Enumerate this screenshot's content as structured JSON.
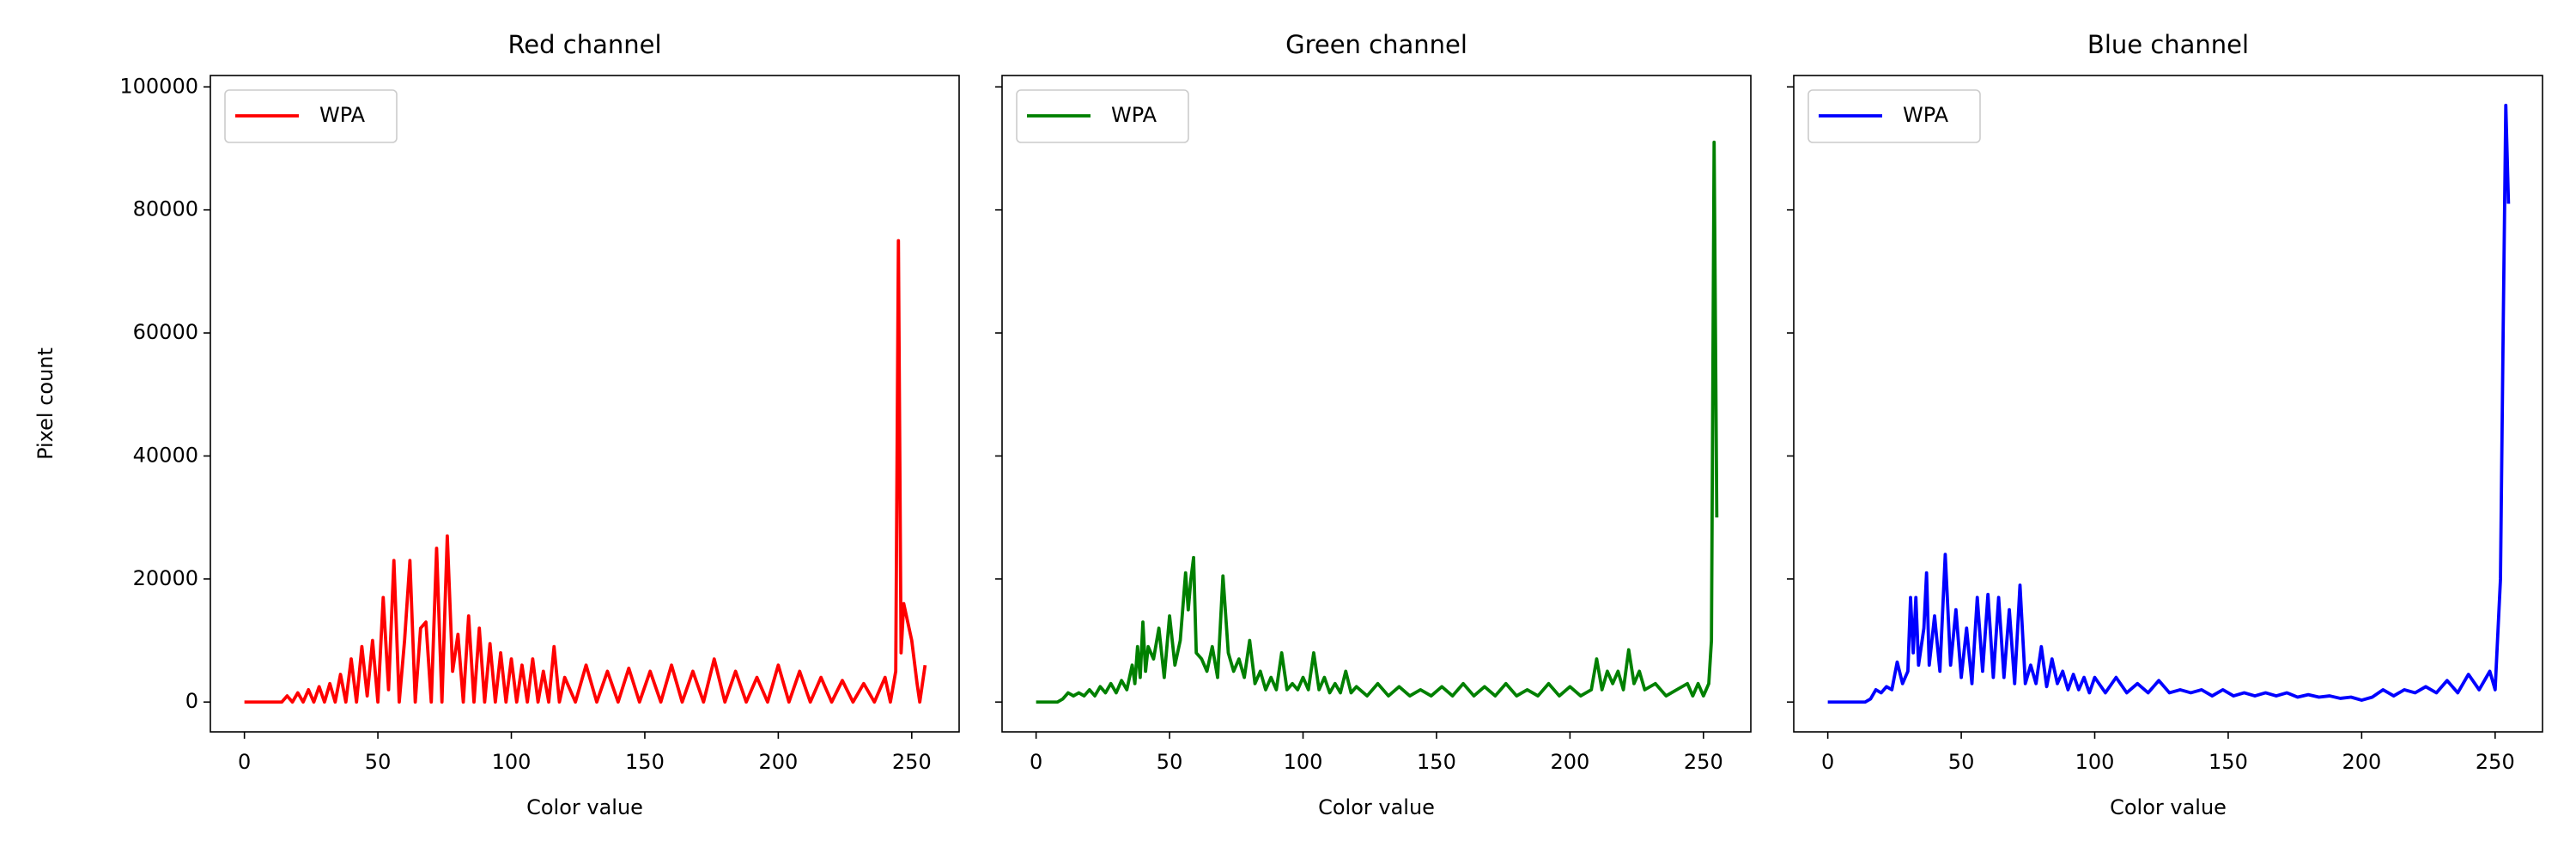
{
  "chart_data": [
    {
      "type": "line",
      "title": "Red channel",
      "xlabel": "Color value",
      "ylabel": "Pixel count",
      "legend": "upper left",
      "x": [
        0,
        10,
        14,
        16,
        18,
        20,
        22,
        24,
        26,
        28,
        30,
        32,
        34,
        36,
        38,
        40,
        42,
        44,
        46,
        48,
        50,
        52,
        54,
        56,
        58,
        60,
        62,
        64,
        66,
        68,
        70,
        72,
        74,
        76,
        78,
        80,
        82,
        84,
        86,
        88,
        90,
        92,
        94,
        96,
        98,
        100,
        102,
        104,
        106,
        108,
        110,
        112,
        114,
        116,
        118,
        120,
        124,
        128,
        132,
        136,
        140,
        144,
        148,
        152,
        156,
        160,
        164,
        168,
        172,
        176,
        180,
        184,
        188,
        192,
        196,
        200,
        204,
        208,
        212,
        216,
        220,
        224,
        228,
        232,
        236,
        240,
        242,
        244,
        245,
        246,
        247,
        248,
        250,
        252,
        253,
        255
      ],
      "series": [
        {
          "name": "WPA",
          "color": "#ff0000",
          "values": [
            0,
            0,
            0,
            1000,
            0,
            1500,
            0,
            2000,
            0,
            2500,
            0,
            3000,
            0,
            4500,
            0,
            7000,
            0,
            9000,
            1000,
            10000,
            0,
            17000,
            2000,
            23000,
            0,
            10000,
            23000,
            0,
            12000,
            13000,
            0,
            25000,
            0,
            27000,
            5000,
            11000,
            0,
            14000,
            0,
            12000,
            0,
            9500,
            0,
            8000,
            0,
            7000,
            0,
            6000,
            0,
            7000,
            0,
            5000,
            0,
            9000,
            0,
            4000,
            0,
            6000,
            0,
            5000,
            0,
            5500,
            0,
            5000,
            0,
            6000,
            0,
            5000,
            0,
            7000,
            0,
            5000,
            0,
            4000,
            0,
            6000,
            0,
            5000,
            0,
            4000,
            0,
            3500,
            0,
            3000,
            0,
            4000,
            0,
            5000,
            75000,
            8000,
            16000,
            14000,
            10000,
            3000,
            0,
            6000
          ]
        }
      ],
      "xlim": [
        -12.75,
        267.75
      ],
      "ylim": [
        -4850,
        101850
      ],
      "xticks": [
        0,
        50,
        100,
        150,
        200,
        250
      ],
      "yticks": [
        0,
        20000,
        40000,
        60000,
        80000,
        100000
      ]
    },
    {
      "type": "line",
      "title": "Green channel",
      "xlabel": "Color value",
      "legend": "upper left",
      "x": [
        0,
        8,
        10,
        12,
        14,
        16,
        18,
        20,
        22,
        24,
        26,
        28,
        30,
        32,
        34,
        36,
        37,
        38,
        39,
        40,
        41,
        42,
        44,
        46,
        48,
        50,
        52,
        54,
        56,
        57,
        58,
        59,
        60,
        62,
        64,
        66,
        68,
        70,
        72,
        74,
        76,
        78,
        80,
        82,
        84,
        86,
        88,
        90,
        92,
        94,
        96,
        98,
        100,
        102,
        104,
        106,
        108,
        110,
        112,
        114,
        116,
        118,
        120,
        124,
        128,
        132,
        136,
        140,
        144,
        148,
        152,
        156,
        160,
        164,
        168,
        172,
        176,
        180,
        184,
        188,
        192,
        196,
        200,
        204,
        208,
        210,
        212,
        214,
        216,
        218,
        220,
        222,
        224,
        226,
        228,
        232,
        236,
        240,
        244,
        246,
        248,
        250,
        252,
        253,
        254,
        255
      ],
      "series": [
        {
          "name": "WPA",
          "color": "#008000",
          "values": [
            0,
            0,
            500,
            1500,
            1000,
            1500,
            1000,
            2000,
            1000,
            2500,
            1500,
            3000,
            1500,
            3500,
            2000,
            6000,
            3000,
            9000,
            4000,
            13000,
            5000,
            9000,
            7000,
            12000,
            4000,
            14000,
            6000,
            10000,
            21000,
            15000,
            20000,
            23500,
            8000,
            7000,
            5000,
            9000,
            4000,
            20500,
            8000,
            5000,
            7000,
            4000,
            10000,
            3000,
            5000,
            2000,
            4000,
            2000,
            8000,
            2000,
            3000,
            2000,
            4000,
            2000,
            8000,
            2000,
            4000,
            1500,
            3000,
            1500,
            5000,
            1500,
            2500,
            1000,
            3000,
            1000,
            2500,
            1000,
            2000,
            1000,
            2500,
            1000,
            3000,
            1000,
            2500,
            1000,
            3000,
            1000,
            2000,
            1000,
            3000,
            1000,
            2500,
            1000,
            2000,
            7000,
            2000,
            5000,
            3000,
            5000,
            2000,
            8500,
            3000,
            5000,
            2000,
            3000,
            1000,
            2000,
            3000,
            1000,
            3000,
            1000,
            3000,
            10000,
            91000,
            30000
          ]
        }
      ],
      "xlim": [
        -12.75,
        267.75
      ],
      "ylim": [
        -4850,
        101850
      ],
      "xticks": [
        0,
        50,
        100,
        150,
        200,
        250
      ],
      "yticks": [
        0,
        20000,
        40000,
        60000,
        80000,
        100000
      ]
    },
    {
      "type": "line",
      "title": "Blue channel",
      "xlabel": "Color value",
      "legend": "upper left",
      "x": [
        0,
        14,
        16,
        18,
        20,
        22,
        24,
        26,
        28,
        30,
        31,
        32,
        33,
        34,
        36,
        37,
        38,
        40,
        42,
        44,
        46,
        48,
        50,
        52,
        54,
        56,
        58,
        60,
        62,
        64,
        66,
        68,
        70,
        72,
        74,
        76,
        78,
        80,
        82,
        84,
        86,
        88,
        90,
        92,
        94,
        96,
        98,
        100,
        104,
        108,
        112,
        116,
        120,
        124,
        128,
        132,
        136,
        140,
        144,
        148,
        152,
        156,
        160,
        164,
        168,
        172,
        176,
        180,
        184,
        188,
        192,
        196,
        200,
        204,
        208,
        212,
        216,
        220,
        224,
        228,
        232,
        236,
        240,
        244,
        248,
        250,
        252,
        253,
        254,
        255
      ],
      "series": [
        {
          "name": "WPA",
          "color": "#0000ff",
          "values": [
            0,
            0,
            500,
            2000,
            1500,
            2500,
            2000,
            6500,
            3000,
            5000,
            17000,
            8000,
            17000,
            6000,
            12000,
            21000,
            6000,
            14000,
            5000,
            24000,
            6000,
            15000,
            4000,
            12000,
            3000,
            17000,
            5000,
            17500,
            4000,
            17000,
            4000,
            15000,
            3000,
            19000,
            3000,
            6000,
            3000,
            9000,
            2500,
            7000,
            3000,
            5000,
            2000,
            4500,
            2000,
            4000,
            1500,
            4000,
            1500,
            4000,
            1500,
            3000,
            1500,
            3500,
            1500,
            2000,
            1500,
            2000,
            1000,
            2000,
            1000,
            1500,
            1000,
            1500,
            1000,
            1500,
            800,
            1200,
            800,
            1000,
            600,
            800,
            300,
            800,
            2000,
            1000,
            2000,
            1500,
            2500,
            1500,
            3500,
            1500,
            4500,
            2000,
            5000,
            2000,
            20000,
            60000,
            97000,
            81000
          ]
        }
      ],
      "xlim": [
        -12.75,
        267.75
      ],
      "ylim": [
        -4850,
        101850
      ],
      "xticks": [
        0,
        50,
        100,
        150,
        200,
        250
      ],
      "yticks": [
        0,
        20000,
        40000,
        60000,
        80000,
        100000
      ]
    }
  ]
}
